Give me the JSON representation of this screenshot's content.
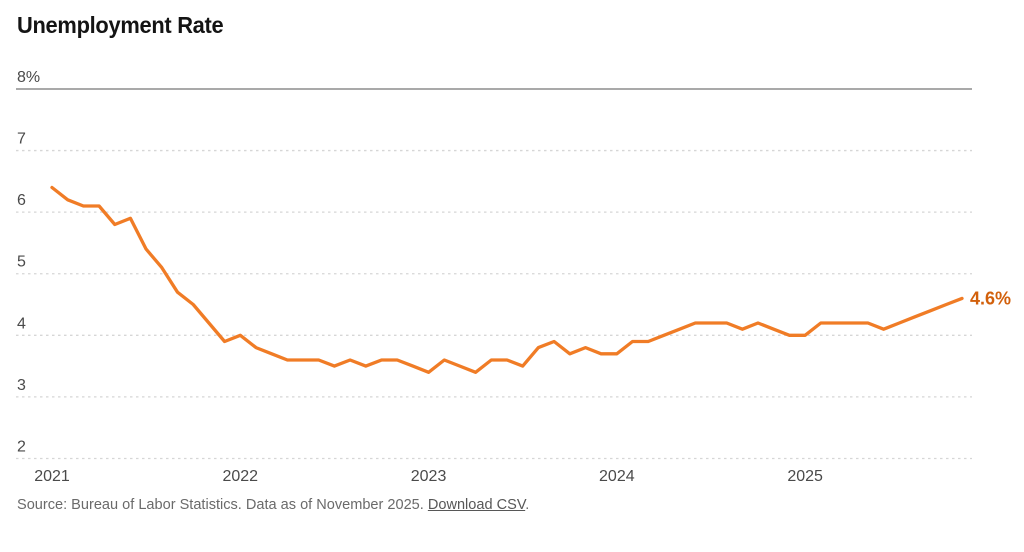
{
  "title": "Unemployment Rate",
  "footer": {
    "source_prefix": "Source: Bureau of Labor Statistics. Data as of November 2025. ",
    "download_link": "Download CSV",
    "suffix": "."
  },
  "colors": {
    "line": "#f07c26",
    "end_label": "#d2600b",
    "top_axis_line": "#a9a9a9",
    "gridline": "#d6d6d6",
    "tick_label": "#4a4a4a",
    "title": "#141414",
    "source_text": "#6a6a6a"
  },
  "chart_data": {
    "type": "line",
    "title": "Unemployment Rate",
    "x_start": "2021-01",
    "x_end": "2025-11",
    "frequency": "monthly",
    "x_tick_labels": [
      "2021",
      "2022",
      "2023",
      "2024",
      "2025"
    ],
    "months_per_x_tick": 12,
    "y_ticks": [
      {
        "value": 8,
        "label": "8%"
      },
      {
        "value": 7,
        "label": "7"
      },
      {
        "value": 6,
        "label": "6"
      },
      {
        "value": 5,
        "label": "5"
      },
      {
        "value": 4,
        "label": "4"
      },
      {
        "value": 3,
        "label": "3"
      },
      {
        "value": 2,
        "label": "2"
      }
    ],
    "ylim": [
      2,
      8
    ],
    "grid": "horizontal-dotted",
    "legend": "none",
    "end_label": "4.6%",
    "end_value": 4.6,
    "series": [
      {
        "name": "Unemployment rate (%)",
        "values": [
          6.4,
          6.2,
          6.1,
          6.1,
          5.8,
          5.9,
          5.4,
          5.1,
          4.7,
          4.5,
          4.2,
          3.9,
          4.0,
          3.8,
          3.7,
          3.6,
          3.6,
          3.6,
          3.5,
          3.6,
          3.5,
          3.6,
          3.6,
          3.5,
          3.4,
          3.6,
          3.5,
          3.4,
          3.6,
          3.6,
          3.5,
          3.8,
          3.9,
          3.7,
          3.8,
          3.7,
          3.7,
          3.9,
          3.9,
          4.0,
          4.1,
          4.2,
          4.2,
          4.2,
          4.1,
          4.2,
          4.1,
          4.0,
          4.0,
          4.2,
          4.2,
          4.2,
          4.2,
          4.1,
          4.2,
          4.3,
          4.4,
          4.5,
          4.6
        ]
      }
    ]
  }
}
